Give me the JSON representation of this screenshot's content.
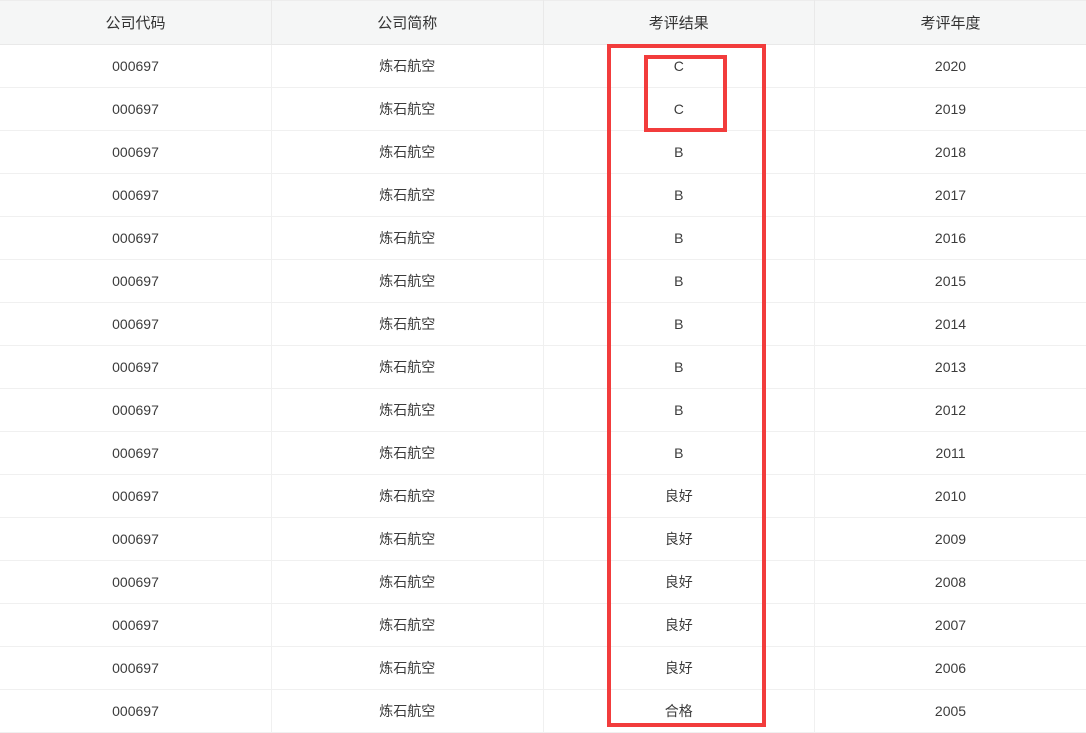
{
  "table": {
    "headers": [
      "公司代码",
      "公司简称",
      "考评结果",
      "考评年度"
    ],
    "rows": [
      {
        "code": "000697",
        "name": "炼石航空",
        "result": "C",
        "year": "2020"
      },
      {
        "code": "000697",
        "name": "炼石航空",
        "result": "C",
        "year": "2019"
      },
      {
        "code": "000697",
        "name": "炼石航空",
        "result": "B",
        "year": "2018"
      },
      {
        "code": "000697",
        "name": "炼石航空",
        "result": "B",
        "year": "2017"
      },
      {
        "code": "000697",
        "name": "炼石航空",
        "result": "B",
        "year": "2016"
      },
      {
        "code": "000697",
        "name": "炼石航空",
        "result": "B",
        "year": "2015"
      },
      {
        "code": "000697",
        "name": "炼石航空",
        "result": "B",
        "year": "2014"
      },
      {
        "code": "000697",
        "name": "炼石航空",
        "result": "B",
        "year": "2013"
      },
      {
        "code": "000697",
        "name": "炼石航空",
        "result": "B",
        "year": "2012"
      },
      {
        "code": "000697",
        "name": "炼石航空",
        "result": "B",
        "year": "2011"
      },
      {
        "code": "000697",
        "name": "炼石航空",
        "result": "良好",
        "year": "2010"
      },
      {
        "code": "000697",
        "name": "炼石航空",
        "result": "良好",
        "year": "2009"
      },
      {
        "code": "000697",
        "name": "炼石航空",
        "result": "良好",
        "year": "2008"
      },
      {
        "code": "000697",
        "name": "炼石航空",
        "result": "良好",
        "year": "2007"
      },
      {
        "code": "000697",
        "name": "炼石航空",
        "result": "良好",
        "year": "2006"
      },
      {
        "code": "000697",
        "name": "炼石航空",
        "result": "合格",
        "year": "2005"
      }
    ]
  },
  "colors": {
    "header_bg": "#f5f6f6",
    "header_border": "#e9e9e9",
    "row_border": "#f0f0f0",
    "text": "#3c3c3c",
    "annotation_red": "#f23c3c"
  }
}
